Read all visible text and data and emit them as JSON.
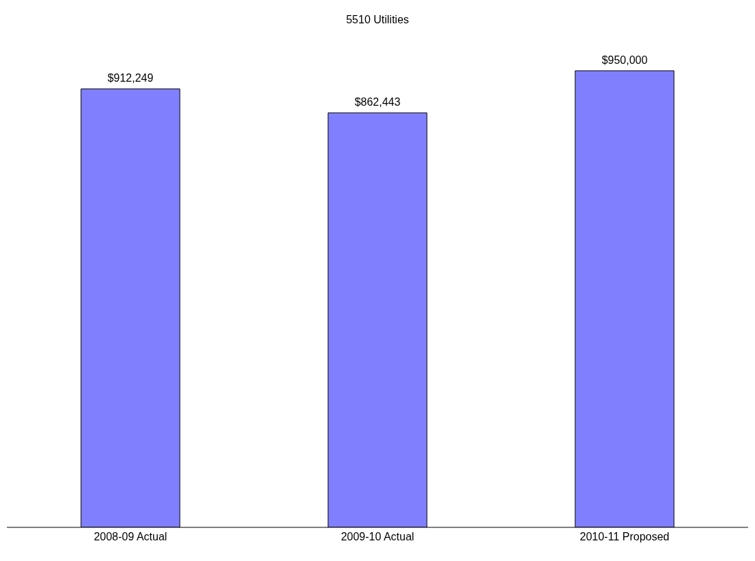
{
  "chart_data": {
    "type": "bar",
    "title": "5510  Utilities",
    "categories": [
      "2008-09 Actual",
      "2009-10 Actual",
      "2010-11 Proposed"
    ],
    "values": [
      912249,
      862443,
      950000
    ],
    "value_labels": [
      "$912,249",
      "$862,443",
      "$950,000"
    ],
    "color": "#8080ff",
    "tick_labels": "x",
    "legend": false
  }
}
